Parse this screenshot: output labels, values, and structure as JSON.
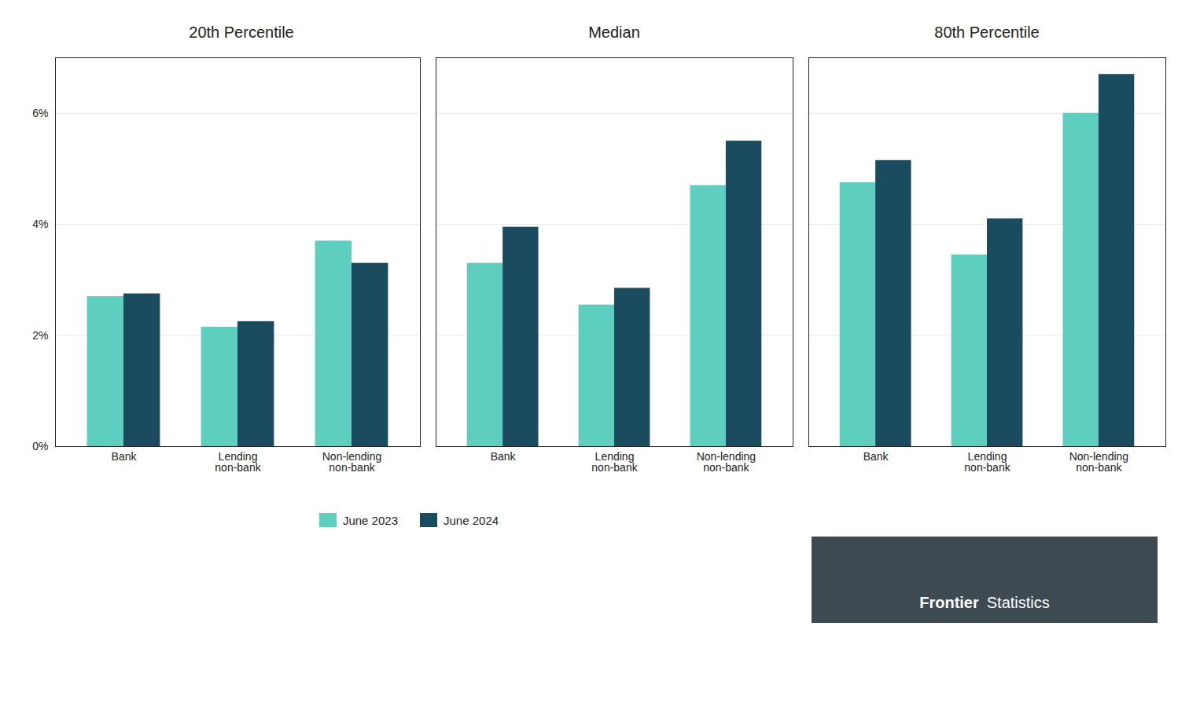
{
  "chart_data": [
    {
      "type": "bar",
      "title": "20th Percentile",
      "categories": [
        "Bank",
        "Lending\nnon-bank",
        "Non-lending\nnon-bank"
      ],
      "series": [
        {
          "name": "June 2023",
          "color": "#5ECFBF",
          "values": [
            2.7,
            2.15,
            3.7
          ]
        },
        {
          "name": "June 2024",
          "color": "#1A4B5F",
          "values": [
            2.75,
            2.25,
            3.3
          ]
        }
      ],
      "ylim": [
        0,
        7.0
      ],
      "yticks": [
        {
          "value": 0,
          "label": "0%"
        },
        {
          "value": 2,
          "label": "2%"
        },
        {
          "value": 4,
          "label": "4%"
        },
        {
          "value": 6,
          "label": "6%"
        }
      ],
      "grid": true,
      "legend": "bottom"
    },
    {
      "type": "bar",
      "title": "Median",
      "categories": [
        "Bank",
        "Lending\nnon-bank",
        "Non-lending\nnon-bank"
      ],
      "series": [
        {
          "name": "June 2023",
          "color": "#5ECFBF",
          "values": [
            3.3,
            2.55,
            4.7
          ]
        },
        {
          "name": "June 2024",
          "color": "#1A4B5F",
          "values": [
            3.95,
            2.85,
            5.5
          ]
        }
      ],
      "ylim": [
        0,
        7.0
      ],
      "yticks": [
        {
          "value": 0,
          "label": "0%"
        },
        {
          "value": 2,
          "label": "2%"
        },
        {
          "value": 4,
          "label": "4%"
        },
        {
          "value": 6,
          "label": "6%"
        }
      ],
      "grid": true,
      "tick_labels": "x"
    },
    {
      "type": "bar",
      "title": "80th Percentile",
      "categories": [
        "Bank",
        "Lending\nnon-bank",
        "Non-lending\nnon-bank"
      ],
      "series": [
        {
          "name": "June 2023",
          "color": "#5ECFBF",
          "values": [
            4.75,
            3.45,
            6.0
          ]
        },
        {
          "name": "June 2024",
          "color": "#1A4B5F",
          "values": [
            5.15,
            4.1,
            6.7
          ]
        }
      ],
      "ylim": [
        0,
        7.0
      ],
      "yticks": [
        {
          "value": 0,
          "label": "0%"
        },
        {
          "value": 2,
          "label": "2%"
        },
        {
          "value": 4,
          "label": "4%"
        },
        {
          "value": 6,
          "label": "6%"
        }
      ],
      "grid": true,
      "tick_labels": "x",
      "annotations": [
        "Frontier",
        "Statistics"
      ]
    }
  ]
}
